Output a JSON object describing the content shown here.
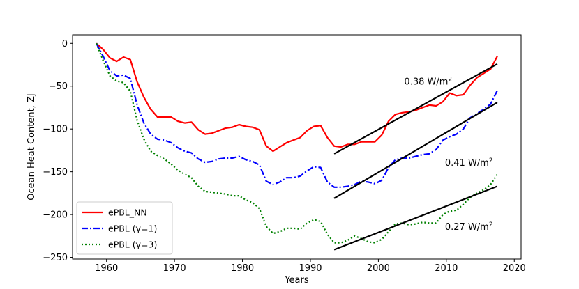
{
  "chart_data": {
    "type": "line",
    "title": "",
    "xlabel": "Years",
    "ylabel": "Ocean Heat Content, ZJ",
    "xlim": [
      1955,
      2021
    ],
    "ylim": [
      -252,
      10
    ],
    "xticks": [
      1960,
      1970,
      1980,
      1990,
      2000,
      2010,
      2020
    ],
    "yticks": [
      0,
      -50,
      -100,
      -150,
      -200,
      -250
    ],
    "xtick_labels": [
      "1960",
      "1970",
      "1980",
      "1990",
      "2000",
      "2010",
      "2020"
    ],
    "ytick_labels": [
      "0",
      "−50",
      "−100",
      "−150",
      "−200",
      "−250"
    ],
    "legend_position": "lower-left",
    "series": [
      {
        "name": "ePBL_NN",
        "color": "#ff0000",
        "style": "solid",
        "x": [
          1958.5,
          1959.5,
          1960.5,
          1961.5,
          1962.5,
          1963.5,
          1964.5,
          1965.5,
          1966.5,
          1967.5,
          1968.5,
          1969.5,
          1970.5,
          1971.5,
          1972.5,
          1973.5,
          1974.5,
          1975.5,
          1976.5,
          1977.5,
          1978.5,
          1979.5,
          1980.5,
          1981.5,
          1982.5,
          1983.5,
          1984.5,
          1985.5,
          1986.5,
          1987.5,
          1988.5,
          1989.5,
          1990.5,
          1991.5,
          1992.5,
          1993.5,
          1994.5,
          1995.5,
          1996.5,
          1997.5,
          1998.5,
          1999.5,
          2000.5,
          2001.5,
          2002.5,
          2003.5,
          2004.5,
          2005.5,
          2006.5,
          2007.5,
          2008.5,
          2009.5,
          2010.5,
          2011.5,
          2012.5,
          2013.5,
          2014.5,
          2015.5,
          2016.5,
          2017.5
        ],
        "y": [
          0,
          -7,
          -17,
          -21,
          -16,
          -19,
          -45,
          -63,
          -77,
          -86,
          -86,
          -86,
          -91,
          -93,
          -92,
          -101,
          -106,
          -105,
          -102,
          -99,
          -98,
          -95,
          -97,
          -98,
          -101,
          -120,
          -126,
          -121,
          -116,
          -113,
          -110,
          -102,
          -97,
          -96,
          -110,
          -120,
          -121,
          -118,
          -118,
          -115,
          -115,
          -115,
          -107,
          -91,
          -83,
          -81,
          -80,
          -78,
          -75,
          -72,
          -73,
          -68,
          -58,
          -61,
          -60,
          -49,
          -40,
          -35,
          -30,
          -15
        ]
      },
      {
        "name": "ePBL (γ=1)",
        "color": "#0000ff",
        "style": "dashdot",
        "x": [
          1958.5,
          1959.5,
          1960.5,
          1961.5,
          1962.5,
          1963.5,
          1964.5,
          1965.5,
          1966.5,
          1967.5,
          1968.5,
          1969.5,
          1970.5,
          1971.5,
          1972.5,
          1973.5,
          1974.5,
          1975.5,
          1976.5,
          1977.5,
          1978.5,
          1979.5,
          1980.5,
          1981.5,
          1982.5,
          1983.5,
          1984.5,
          1985.5,
          1986.5,
          1987.5,
          1988.5,
          1989.5,
          1990.5,
          1991.5,
          1992.5,
          1993.5,
          1994.5,
          1995.5,
          1996.5,
          1997.5,
          1998.5,
          1999.5,
          2000.5,
          2001.5,
          2002.5,
          2003.5,
          2004.5,
          2005.5,
          2006.5,
          2007.5,
          2008.5,
          2009.5,
          2010.5,
          2011.5,
          2012.5,
          2013.5,
          2014.5,
          2015.5,
          2016.5,
          2017.5
        ],
        "y": [
          0,
          -15,
          -32,
          -38,
          -37,
          -41,
          -72,
          -93,
          -106,
          -112,
          -113,
          -116,
          -122,
          -126,
          -128,
          -135,
          -139,
          -138,
          -135,
          -134,
          -134,
          -132,
          -136,
          -138,
          -142,
          -161,
          -165,
          -162,
          -157,
          -157,
          -155,
          -149,
          -144,
          -145,
          -162,
          -168,
          -168,
          -167,
          -165,
          -161,
          -162,
          -164,
          -160,
          -145,
          -136,
          -134,
          -134,
          -132,
          -130,
          -129,
          -124,
          -113,
          -109,
          -106,
          -100,
          -87,
          -82,
          -77,
          -71,
          -55
        ]
      },
      {
        "name": "ePBL (γ=3)",
        "color": "#008000",
        "style": "dotted",
        "x": [
          1958.5,
          1959.5,
          1960.5,
          1961.5,
          1962.5,
          1963.5,
          1964.5,
          1965.5,
          1966.5,
          1967.5,
          1968.5,
          1969.5,
          1970.5,
          1971.5,
          1972.5,
          1973.5,
          1974.5,
          1975.5,
          1976.5,
          1977.5,
          1978.5,
          1979.5,
          1980.5,
          1981.5,
          1982.5,
          1983.5,
          1984.5,
          1985.5,
          1986.5,
          1987.5,
          1988.5,
          1989.5,
          1990.5,
          1991.5,
          1992.5,
          1993.5,
          1994.5,
          1995.5,
          1996.5,
          1997.5,
          1998.5,
          1999.5,
          2000.5,
          2001.5,
          2002.5,
          2003.5,
          2004.5,
          2005.5,
          2006.5,
          2007.5,
          2008.5,
          2009.5,
          2010.5,
          2011.5,
          2012.5,
          2013.5,
          2014.5,
          2015.5,
          2016.5,
          2017.5
        ],
        "y": [
          0,
          -20,
          -38,
          -44,
          -46,
          -56,
          -90,
          -112,
          -126,
          -131,
          -135,
          -141,
          -148,
          -153,
          -157,
          -167,
          -173,
          -174,
          -175,
          -176,
          -178,
          -178,
          -183,
          -186,
          -193,
          -214,
          -222,
          -220,
          -216,
          -216,
          -217,
          -210,
          -206,
          -208,
          -223,
          -233,
          -233,
          -230,
          -225,
          -228,
          -232,
          -233,
          -229,
          -220,
          -211,
          -210,
          -212,
          -211,
          -209,
          -210,
          -210,
          -200,
          -196,
          -195,
          -188,
          -180,
          -175,
          -171,
          -165,
          -153
        ]
      }
    ],
    "trend_lines": [
      {
        "name": "trend-epbl-nn",
        "x": [
          1993.5,
          2017.5
        ],
        "y": [
          -129,
          -24
        ],
        "color": "#000000"
      },
      {
        "name": "trend-epbl-gamma1",
        "x": [
          1993.5,
          2017.5
        ],
        "y": [
          -181,
          -69
        ],
        "color": "#000000"
      },
      {
        "name": "trend-epbl-gamma3",
        "x": [
          1993.5,
          2017.5
        ],
        "y": [
          -241,
          -167
        ],
        "color": "#000000"
      }
    ],
    "annotations": [
      {
        "name": "annotation-trend-nn",
        "text": "0.38 W/m²",
        "x": 2003.8,
        "y": -48
      },
      {
        "name": "annotation-trend-gamma1",
        "text": "0.41 W/m²",
        "x": 2009.8,
        "y": -143
      },
      {
        "name": "annotation-trend-gamma3",
        "text": "0.27 W/m²",
        "x": 2009.8,
        "y": -218
      }
    ]
  }
}
